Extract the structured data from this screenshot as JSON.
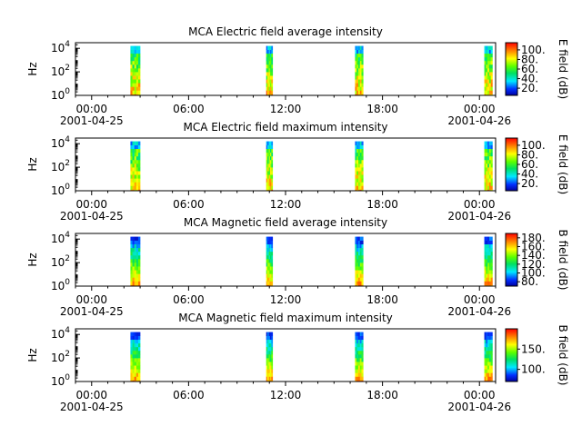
{
  "chart_data": [
    {
      "type": "heatmap",
      "title": "MCA  Electric field average intensity",
      "ylabel": "Hz",
      "y_scale": "log",
      "ylim_hz": [
        1,
        30000
      ],
      "y_ticks": [
        {
          "base": "10",
          "exp": "0"
        },
        {
          "base": "10",
          "exp": "2"
        },
        {
          "base": "10",
          "exp": "4"
        }
      ],
      "x_ticks": [
        {
          "time": "00:00",
          "date": "2001-04-25"
        },
        {
          "time": "06:00",
          "date": ""
        },
        {
          "time": "12:00",
          "date": ""
        },
        {
          "time": "18:00",
          "date": ""
        },
        {
          "time": "00:00",
          "date": "2001-04-26"
        }
      ],
      "xlim_hours": [
        -1,
        25
      ],
      "colorbar": {
        "label": "E field (dB)",
        "range": [
          5,
          115
        ],
        "ticks": [
          "20.",
          "40.",
          "60.",
          "80.",
          "100."
        ]
      },
      "data_windows_hours": [
        [
          2.4,
          3.0
        ],
        [
          10.8,
          11.2
        ],
        [
          16.3,
          16.8
        ],
        [
          24.3,
          24.8
        ]
      ],
      "field": "electric"
    },
    {
      "type": "heatmap",
      "title": "MCA  Electric field maximum intensity",
      "ylabel": "Hz",
      "y_scale": "log",
      "ylim_hz": [
        1,
        30000
      ],
      "y_ticks": [
        {
          "base": "10",
          "exp": "0"
        },
        {
          "base": "10",
          "exp": "2"
        },
        {
          "base": "10",
          "exp": "4"
        }
      ],
      "x_ticks": [
        {
          "time": "00:00",
          "date": "2001-04-25"
        },
        {
          "time": "06:00",
          "date": ""
        },
        {
          "time": "12:00",
          "date": ""
        },
        {
          "time": "18:00",
          "date": ""
        },
        {
          "time": "00:00",
          "date": "2001-04-26"
        }
      ],
      "xlim_hours": [
        -1,
        25
      ],
      "colorbar": {
        "label": "E field (dB)",
        "range": [
          5,
          115
        ],
        "ticks": [
          "20.",
          "40.",
          "60.",
          "80.",
          "100."
        ]
      },
      "data_windows_hours": [
        [
          2.4,
          3.0
        ],
        [
          10.8,
          11.2
        ],
        [
          16.3,
          16.8
        ],
        [
          24.3,
          24.8
        ]
      ],
      "field": "electric"
    },
    {
      "type": "heatmap",
      "title": "MCA  Magnetic field average intensity",
      "ylabel": "Hz",
      "y_scale": "log",
      "ylim_hz": [
        1,
        30000
      ],
      "y_ticks": [
        {
          "base": "10",
          "exp": "0"
        },
        {
          "base": "10",
          "exp": "2"
        },
        {
          "base": "10",
          "exp": "4"
        }
      ],
      "x_ticks": [
        {
          "time": "00:00",
          "date": "2001-04-25"
        },
        {
          "time": "06:00",
          "date": ""
        },
        {
          "time": "12:00",
          "date": ""
        },
        {
          "time": "18:00",
          "date": ""
        },
        {
          "time": "00:00",
          "date": "2001-04-26"
        }
      ],
      "xlim_hours": [
        -1,
        25
      ],
      "colorbar": {
        "label": "B field (dB)",
        "range": [
          70,
          190
        ],
        "ticks": [
          "80.",
          "100.",
          "120.",
          "140.",
          "160.",
          "180."
        ]
      },
      "data_windows_hours": [
        [
          2.4,
          3.0
        ],
        [
          10.8,
          11.2
        ],
        [
          16.3,
          16.8
        ],
        [
          24.3,
          24.8
        ]
      ],
      "field": "magnetic"
    },
    {
      "type": "heatmap",
      "title": "MCA  Magnetic field maximum intensity",
      "ylabel": "Hz",
      "y_scale": "log",
      "ylim_hz": [
        1,
        30000
      ],
      "y_ticks": [
        {
          "base": "10",
          "exp": "0"
        },
        {
          "base": "10",
          "exp": "2"
        },
        {
          "base": "10",
          "exp": "4"
        }
      ],
      "x_ticks": [
        {
          "time": "00:00",
          "date": "2001-04-25"
        },
        {
          "time": "06:00",
          "date": ""
        },
        {
          "time": "12:00",
          "date": ""
        },
        {
          "time": "18:00",
          "date": ""
        },
        {
          "time": "00:00",
          "date": "2001-04-26"
        }
      ],
      "xlim_hours": [
        -1,
        25
      ],
      "colorbar": {
        "label": "B field (dB)",
        "range": [
          70,
          200
        ],
        "ticks": [
          "100.",
          "150."
        ]
      },
      "data_windows_hours": [
        [
          2.4,
          3.0
        ],
        [
          10.8,
          11.2
        ],
        [
          16.3,
          16.8
        ],
        [
          24.3,
          24.8
        ]
      ],
      "field": "magnetic"
    }
  ]
}
